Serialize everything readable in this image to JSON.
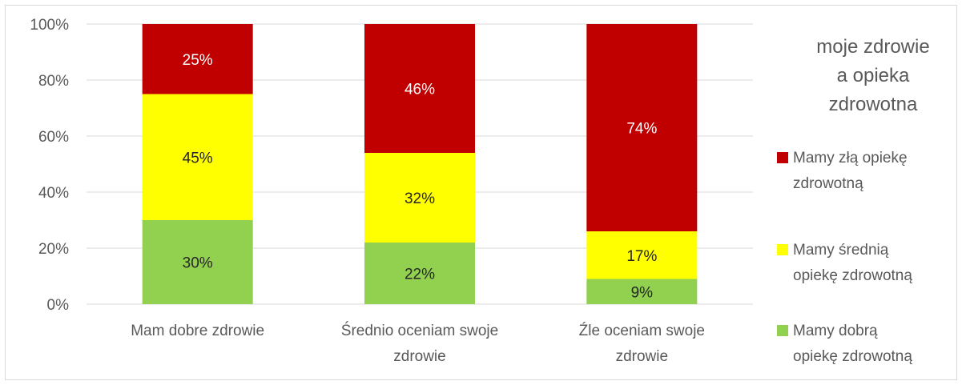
{
  "chart_data": {
    "type": "bar",
    "stacked": true,
    "percent": true,
    "categories": [
      [
        "Mam dobre zdrowie"
      ],
      [
        "Średnio oceniam swoje",
        "zdrowie"
      ],
      [
        "Źle oceniam swoje",
        "zdrowie"
      ]
    ],
    "series": [
      {
        "name": [
          "Mamy dobrą",
          "opiekę zdrowotną"
        ],
        "color": "#92d050",
        "values": [
          30,
          22,
          9
        ],
        "labels": [
          "30%",
          "22%",
          "9%"
        ]
      },
      {
        "name": [
          "Mamy średnią",
          "opiekę zdrowotną"
        ],
        "color": "#ffff00",
        "values": [
          45,
          32,
          17
        ],
        "labels": [
          "45%",
          "32%",
          "17%"
        ]
      },
      {
        "name": [
          "Mamy złą opiekę",
          "zdrowotną"
        ],
        "color": "#c00000",
        "values": [
          25,
          46,
          74
        ],
        "labels": [
          "25%",
          "46%",
          "74%"
        ]
      }
    ],
    "legend_title": [
      "moje zdrowie",
      "a opieka",
      "zdrowotna"
    ],
    "legend_position": "right",
    "ylim": [
      0,
      100
    ],
    "yticks": [
      "0%",
      "20%",
      "40%",
      "60%",
      "80%",
      "100%"
    ],
    "grid": true,
    "title": "",
    "xlabel": "",
    "ylabel": ""
  }
}
